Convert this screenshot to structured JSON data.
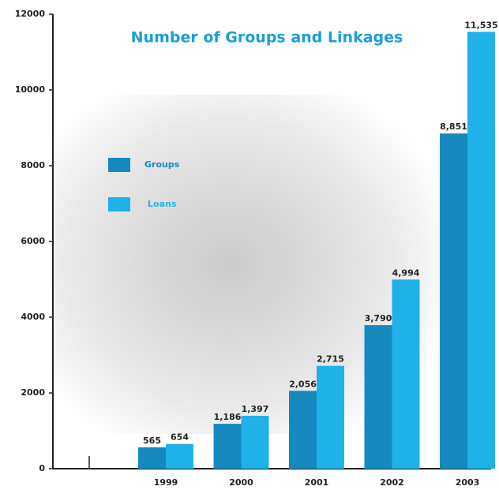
{
  "chart_data": {
    "type": "bar",
    "title": "Number of Groups and Linkages",
    "categories": [
      "1999",
      "2000",
      "2001",
      "2002",
      "2003"
    ],
    "series": [
      {
        "name": "Groups",
        "color": "#1689bf",
        "values": [
          565,
          1186,
          2056,
          3790,
          8851
        ],
        "value_labels": [
          "565",
          "1,186",
          "2,056",
          "3,790",
          "8,851"
        ]
      },
      {
        "name": "Loans",
        "color": "#1fb1e8",
        "values": [
          654,
          1397,
          2715,
          4994,
          11535
        ],
        "value_labels": [
          "654",
          "1,397",
          "2,715",
          "4,994",
          "11,535"
        ]
      }
    ],
    "ylim": [
      0,
      12000
    ],
    "yticks": [
      0,
      2000,
      4000,
      6000,
      8000,
      10000,
      12000
    ]
  }
}
